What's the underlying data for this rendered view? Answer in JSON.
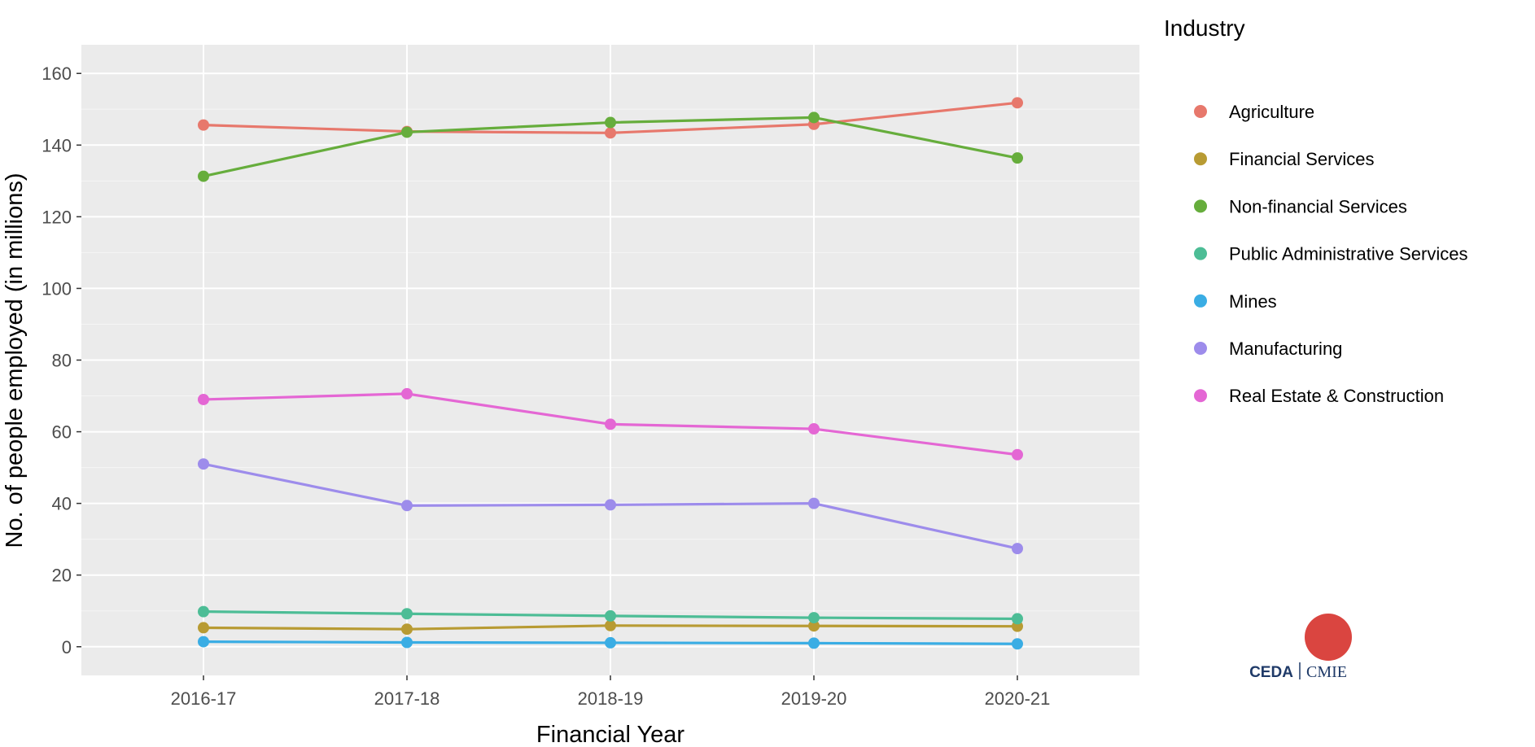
{
  "chart_data": {
    "type": "line",
    "xlabel": "Financial Year",
    "ylabel": "No. of people employed (in millions)",
    "categories": [
      "2016-17",
      "2017-18",
      "2018-19",
      "2019-20",
      "2020-21"
    ],
    "ylim": [
      -8,
      168
    ],
    "yticks": [
      0,
      20,
      40,
      60,
      80,
      100,
      120,
      140,
      160
    ],
    "grid": true,
    "legend": {
      "title": "Industry",
      "placement": "right"
    },
    "series": [
      {
        "name": "Agriculture",
        "color": "#E7786C",
        "values": [
          145.6,
          143.8,
          143.4,
          145.8,
          151.8
        ]
      },
      {
        "name": "Financial Services",
        "color": "#B89B33",
        "values": [
          5.3,
          4.9,
          5.9,
          5.8,
          5.7
        ]
      },
      {
        "name": "Non-financial Services",
        "color": "#66AD3C",
        "values": [
          131.3,
          143.6,
          146.3,
          147.7,
          136.4
        ]
      },
      {
        "name": "Public Administrative Services",
        "color": "#4DBD96",
        "values": [
          9.8,
          9.2,
          8.6,
          8.1,
          7.8
        ]
      },
      {
        "name": "Mines",
        "color": "#3AADE4",
        "values": [
          1.4,
          1.2,
          1.1,
          1.0,
          0.8
        ]
      },
      {
        "name": "Manufacturing",
        "color": "#9D8CEB",
        "values": [
          51.0,
          39.4,
          39.6,
          40.0,
          27.4
        ]
      },
      {
        "name": "Real Estate & Construction",
        "color": "#E467D4",
        "values": [
          69.0,
          70.6,
          62.1,
          60.8,
          53.6
        ]
      }
    ]
  },
  "logo": {
    "left_text": "CEDA",
    "right_text": "CMIE",
    "dot_color": "#DA4540"
  }
}
